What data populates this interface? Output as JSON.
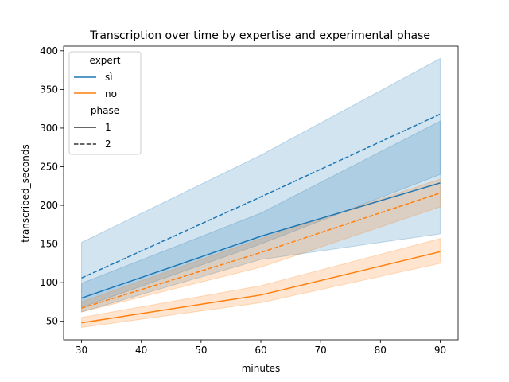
{
  "chart_data": {
    "type": "line",
    "title": "Transcription over time by expertise and experimental phase",
    "xlabel": "minutes",
    "ylabel": "transcribed_seconds",
    "xlim": [
      27,
      93
    ],
    "ylim": [
      26,
      406
    ],
    "xticks": [
      30,
      40,
      50,
      60,
      70,
      80,
      90
    ],
    "yticks": [
      50,
      100,
      150,
      200,
      250,
      300,
      350,
      400
    ],
    "grid": false,
    "legend": {
      "placement": "top-left",
      "hue_title": "expert",
      "style_title": "phase",
      "hue_entries": [
        {
          "label": "sì",
          "color": "#1f77b4"
        },
        {
          "label": "no",
          "color": "#ff7f0e"
        }
      ],
      "style_entries": [
        {
          "label": "1",
          "dash": "solid"
        },
        {
          "label": "2",
          "dash": "dashed"
        }
      ]
    },
    "series": [
      {
        "expert": "sì",
        "phase": "1",
        "color": "#1f77b4",
        "dash": "solid",
        "x": [
          30,
          60,
          90
        ],
        "y": [
          80,
          160,
          229
        ],
        "ci_low": [
          62,
          130,
          163
        ],
        "ci_high": [
          99,
          190,
          309
        ]
      },
      {
        "expert": "sì",
        "phase": "2",
        "color": "#1f77b4",
        "dash": "dashed",
        "x": [
          30,
          60,
          90
        ],
        "y": [
          106,
          211,
          318
        ],
        "ci_low": [
          68,
          150,
          240
        ],
        "ci_high": [
          152,
          265,
          390
        ]
      },
      {
        "expert": "no",
        "phase": "1",
        "color": "#ff7f0e",
        "dash": "solid",
        "x": [
          30,
          60,
          90
        ],
        "y": [
          48,
          84,
          140
        ],
        "ci_low": [
          42,
          74,
          125
        ],
        "ci_high": [
          55,
          96,
          157
        ]
      },
      {
        "expert": "no",
        "phase": "2",
        "color": "#ff7f0e",
        "dash": "dashed",
        "x": [
          30,
          60,
          90
        ],
        "y": [
          67,
          139,
          216
        ],
        "ci_low": [
          62,
          120,
          198
        ],
        "ci_high": [
          75,
          157,
          234
        ]
      }
    ]
  }
}
